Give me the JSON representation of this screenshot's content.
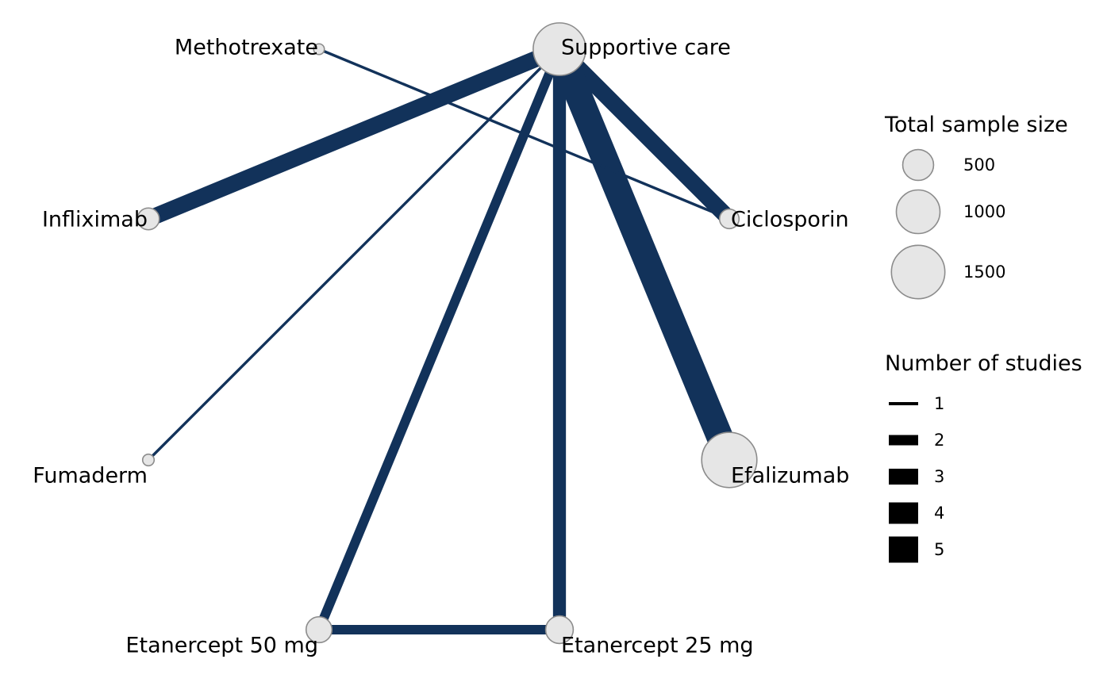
{
  "colors": {
    "edge": "#12325a",
    "node_fill": "#e6e6e6",
    "node_stroke": "#8c8c8c",
    "legend_line": "#000000"
  },
  "nodes": [
    {
      "id": "supportive-care",
      "label": "Supportive care",
      "sample_size": 1450
    },
    {
      "id": "methotrexate",
      "label": "Methotrexate",
      "sample_size": 60
    },
    {
      "id": "infliximab",
      "label": "Infliximab",
      "sample_size": 250
    },
    {
      "id": "ciclosporin",
      "label": "Ciclosporin",
      "sample_size": 200
    },
    {
      "id": "fumaderm",
      "label": "Fumaderm",
      "sample_size": 70
    },
    {
      "id": "efalizumab",
      "label": "Efalizumab",
      "sample_size": 1600
    },
    {
      "id": "etanercept-50",
      "label": "Etanercept 50 mg",
      "sample_size": 350
    },
    {
      "id": "etanercept-25",
      "label": "Etanercept 25 mg",
      "sample_size": 400
    }
  ],
  "edges": [
    {
      "from": "supportive-care",
      "to": "infliximab",
      "studies": 5
    },
    {
      "from": "supportive-care",
      "to": "ciclosporin",
      "studies": 5
    },
    {
      "from": "supportive-care",
      "to": "efalizumab",
      "studies": 8
    },
    {
      "from": "supportive-care",
      "to": "fumaderm",
      "studies": 1
    },
    {
      "from": "supportive-care",
      "to": "etanercept-50",
      "studies": 3
    },
    {
      "from": "supportive-care",
      "to": "etanercept-25",
      "studies": 4
    },
    {
      "from": "methotrexate",
      "to": "ciclosporin",
      "studies": 1
    },
    {
      "from": "etanercept-50",
      "to": "etanercept-25",
      "studies": 3
    }
  ],
  "legend_size": {
    "title": "Total sample size",
    "entries": [
      {
        "label": "500",
        "value": 500
      },
      {
        "label": "1000",
        "value": 1000
      },
      {
        "label": "1500",
        "value": 1500
      }
    ]
  },
  "legend_studies": {
    "title": "Number of studies",
    "entries": [
      {
        "label": "1",
        "value": 1
      },
      {
        "label": "2",
        "value": 2
      },
      {
        "label": "3",
        "value": 3
      },
      {
        "label": "4",
        "value": 4
      },
      {
        "label": "5",
        "value": 5
      }
    ]
  }
}
